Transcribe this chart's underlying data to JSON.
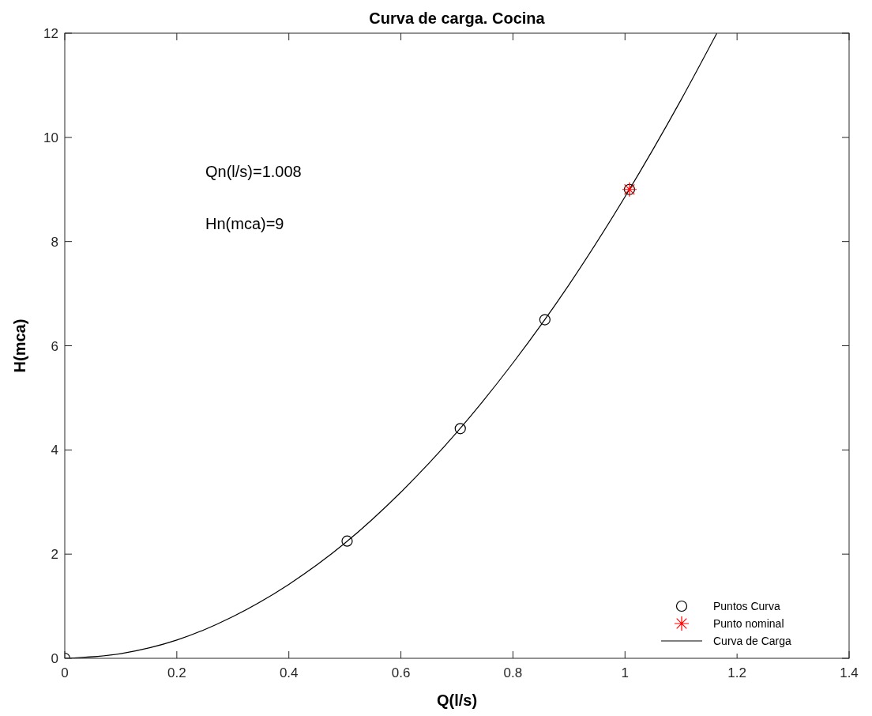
{
  "chart_data": {
    "type": "scatter",
    "title": "Curva de carga. Cocina",
    "xlabel": "Q(l/s)",
    "ylabel": "H(mca)",
    "xlim": [
      0,
      1.4
    ],
    "xticks": [
      0,
      0.2,
      0.4,
      0.6,
      0.8,
      1,
      1.2,
      1.4
    ],
    "ylim": [
      0,
      12
    ],
    "yticks": [
      0,
      2,
      4,
      6,
      8,
      10,
      12
    ],
    "grid": false,
    "legend": "bottom right",
    "annotations": [
      "Qn(l/s)=1.008",
      "Hn(mca)=9"
    ],
    "series": [
      {
        "name": "Puntos Curva",
        "marker": "circle",
        "color": "#000000",
        "x": [
          0,
          0.504,
          0.706,
          0.857,
          1.008
        ],
        "values": [
          0,
          2.25,
          4.41,
          6.5,
          9
        ]
      },
      {
        "name": "Punto nominal",
        "marker": "cross",
        "color": "#ff0000",
        "x": [
          1.008
        ],
        "values": [
          9
        ]
      },
      {
        "name": "Curva de Carga",
        "type": "line",
        "line_style": "solid",
        "color": "#000000",
        "x": [
          0,
          0.1,
          0.2,
          0.3,
          0.4,
          0.5,
          0.6,
          0.7,
          0.8,
          0.9,
          1,
          1.1,
          1.164
        ],
        "values": [
          0,
          0.09,
          0.35,
          0.8,
          1.42,
          2.21,
          3.19,
          4.34,
          5.67,
          7.17,
          8.86,
          10.72,
          12
        ]
      }
    ]
  }
}
